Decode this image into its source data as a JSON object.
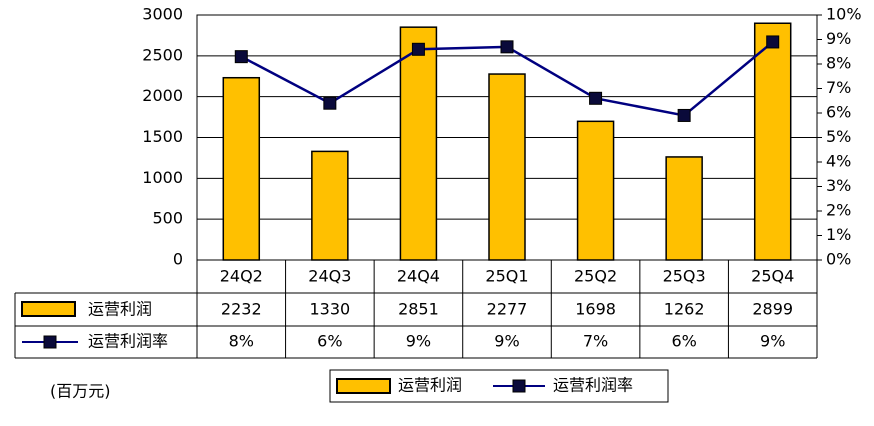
{
  "chart_data": {
    "type": "bar",
    "unit_label": "(百万元)",
    "categories": [
      "24Q2",
      "24Q3",
      "24Q4",
      "25Q1",
      "25Q2",
      "25Q3",
      "25Q4"
    ],
    "series": [
      {
        "name": "运营利润",
        "type": "bar",
        "color": "#FFC000",
        "values": [
          2232,
          1330,
          2851,
          2277,
          1698,
          1262,
          2899
        ]
      },
      {
        "name": "运营利润率",
        "type": "line",
        "color": "#000080",
        "axis": "y2",
        "values": [
          8.3,
          6.4,
          8.6,
          8.7,
          6.6,
          5.9,
          8.9
        ],
        "value_labels": [
          "8%",
          "6%",
          "9%",
          "9%",
          "7%",
          "6%",
          "9%"
        ]
      }
    ],
    "ylim": [
      0,
      3000
    ],
    "yticks": [
      0,
      500,
      1000,
      1500,
      2000,
      2500,
      3000
    ],
    "y2lim": [
      0,
      10
    ],
    "y2ticks": [
      {
        "value": 0,
        "label": "0%"
      },
      {
        "value": 1,
        "label": "1%"
      },
      {
        "value": 2,
        "label": "2%"
      },
      {
        "value": 3,
        "label": "3%"
      },
      {
        "value": 4,
        "label": "4%"
      },
      {
        "value": 5,
        "label": "5%"
      },
      {
        "value": 6,
        "label": "6%"
      },
      {
        "value": 7,
        "label": "7%"
      },
      {
        "value": 8,
        "label": "8%"
      },
      {
        "value": 9,
        "label": "9%"
      },
      {
        "value": 10,
        "label": "10%"
      }
    ],
    "grid": true
  }
}
